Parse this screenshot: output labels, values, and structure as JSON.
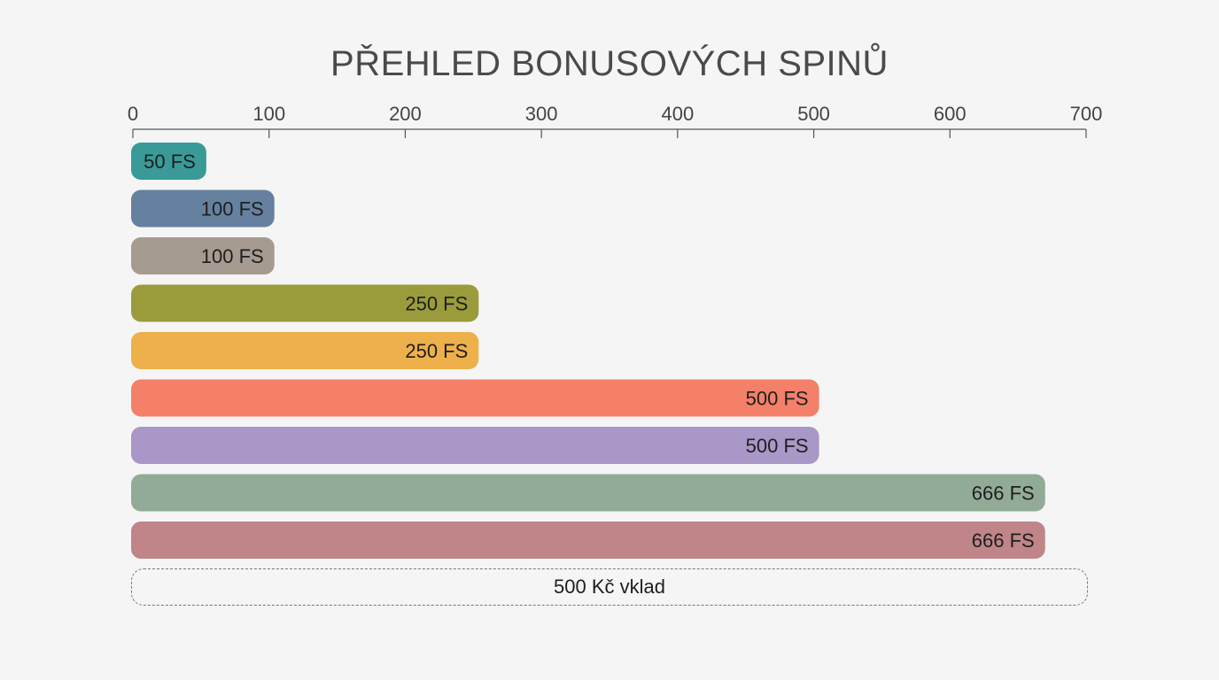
{
  "chart_data": {
    "type": "bar",
    "orientation": "horizontal",
    "title": "PŘEHLED BONUSOVÝCH SPINŮ",
    "xlim": [
      0,
      700
    ],
    "x_ticks": [
      "0",
      "100",
      "200",
      "300",
      "400",
      "500",
      "600",
      "700"
    ],
    "x_axis_position": "top",
    "grid": false,
    "bars": [
      {
        "value": 50,
        "label": "50 FS",
        "color": "#3a9a98"
      },
      {
        "value": 100,
        "label": "100 FS",
        "color": "#66819f"
      },
      {
        "value": 100,
        "label": "100 FS",
        "color": "#a69b91"
      },
      {
        "value": 250,
        "label": "250 FS",
        "color": "#9a9c3c"
      },
      {
        "value": 250,
        "label": "250 FS",
        "color": "#edb04a"
      },
      {
        "value": 500,
        "label": "500 FS",
        "color": "#f4806a"
      },
      {
        "value": 500,
        "label": "500 FS",
        "color": "#a997c7"
      },
      {
        "value": 666,
        "label": "666 FS",
        "color": "#91ab97"
      },
      {
        "value": 666,
        "label": "666 FS",
        "color": "#bf8589"
      }
    ],
    "note": "500 Kč vklad"
  }
}
